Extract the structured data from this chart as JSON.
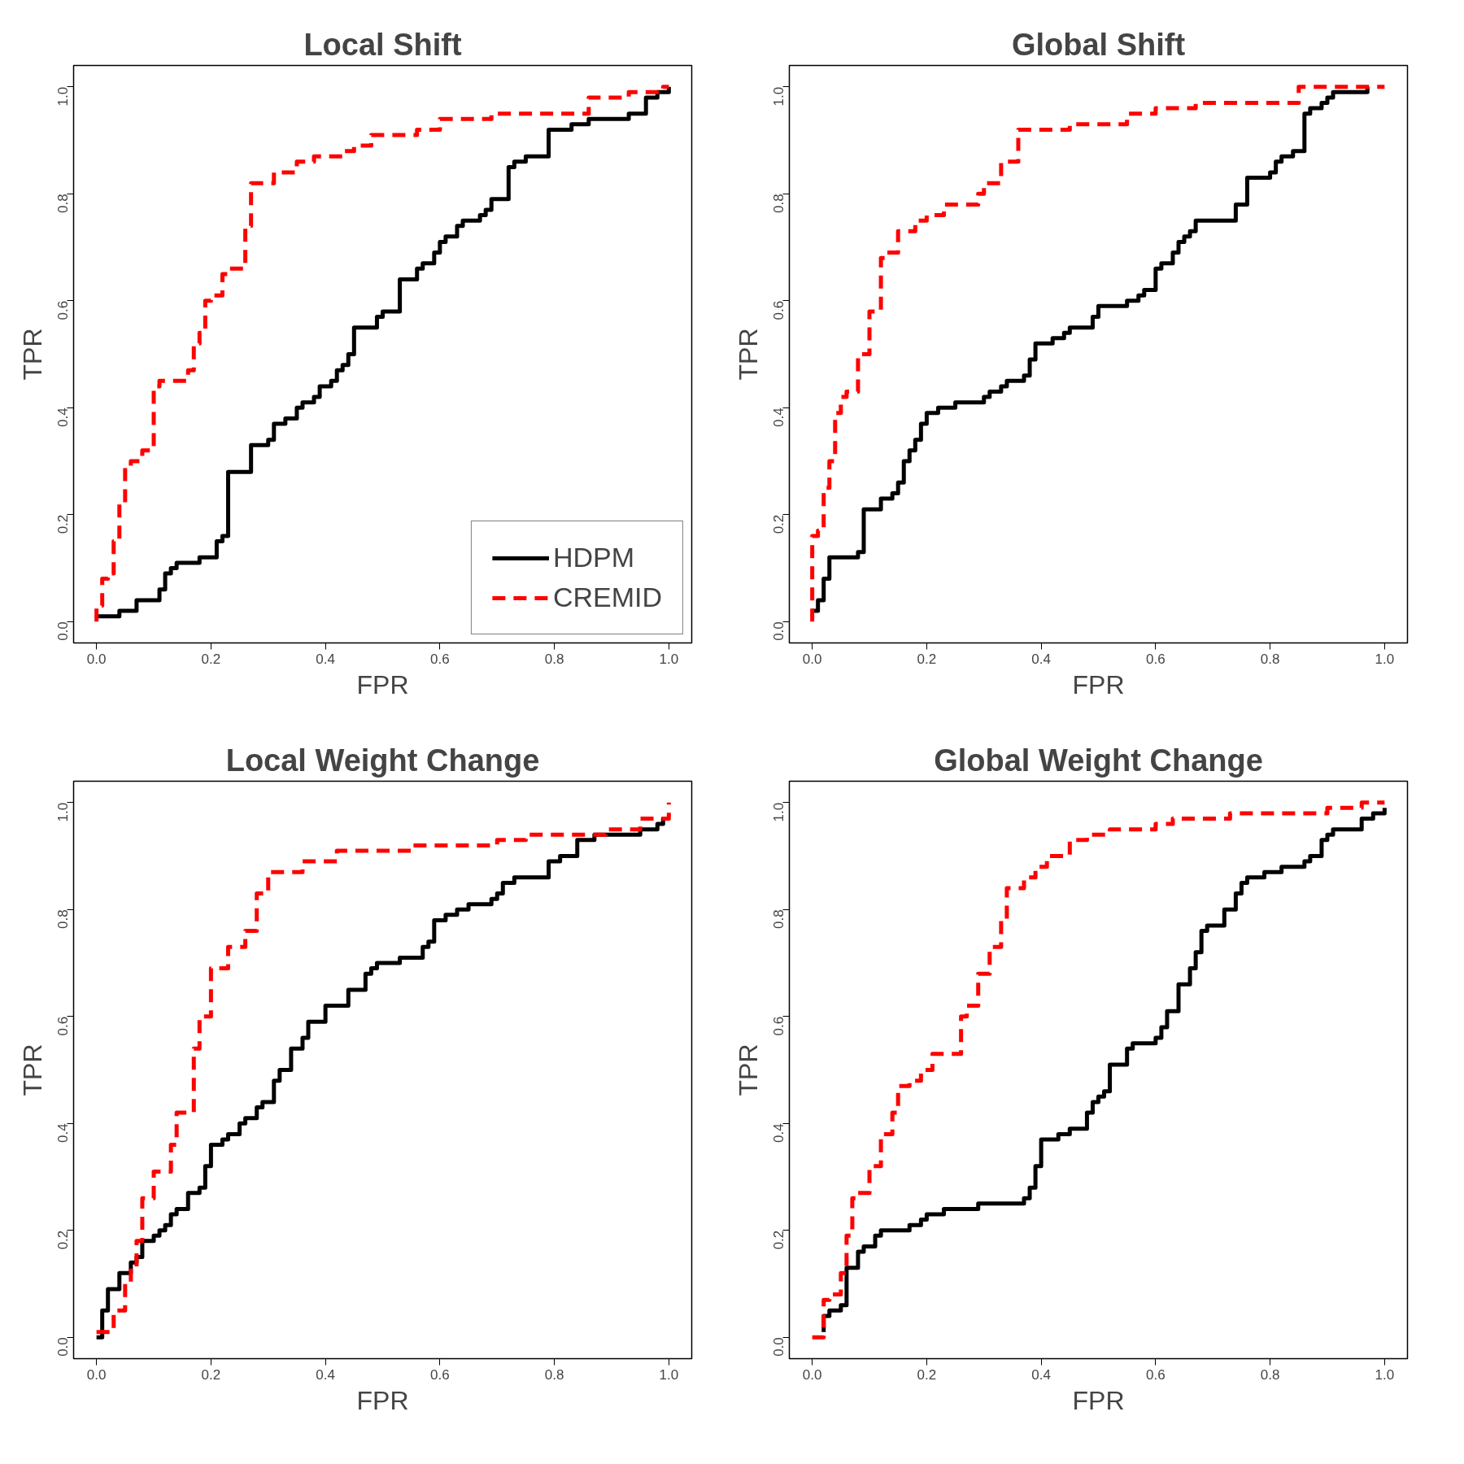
{
  "chart_data": [
    {
      "type": "step",
      "title": "Local Shift",
      "xlabel": "FPR",
      "ylabel": "TPR",
      "xlim": [
        -0.04,
        1.04
      ],
      "ylim": [
        -0.04,
        1.04
      ],
      "xticks": [
        {
          "value": 0,
          "label": "0.0"
        },
        {
          "value": 0.2,
          "label": "0.2"
        },
        {
          "value": 0.4,
          "label": "0.4"
        },
        {
          "value": 0.6,
          "label": "0.6"
        },
        {
          "value": 0.8,
          "label": "0.8"
        },
        {
          "value": 1,
          "label": "1.0"
        }
      ],
      "yticks": [
        {
          "value": 0,
          "label": "0.0"
        },
        {
          "value": 0.2,
          "label": "0.2"
        },
        {
          "value": 0.4,
          "label": "0.4"
        },
        {
          "value": 0.6,
          "label": "0.6"
        },
        {
          "value": 0.8,
          "label": "0.8"
        },
        {
          "value": 1,
          "label": "1.0"
        }
      ],
      "grid": false,
      "legend": "bottom right",
      "series": [
        {
          "name": "HDPM",
          "color": "#000000",
          "line_style": "solid",
          "x": [
            0,
            0.04,
            0.07,
            0.11,
            0.12,
            0.13,
            0.14,
            0.18,
            0.21,
            0.22,
            0.23,
            0.27,
            0.3,
            0.31,
            0.33,
            0.35,
            0.36,
            0.38,
            0.39,
            0.41,
            0.42,
            0.43,
            0.44,
            0.45,
            0.49,
            0.5,
            0.53,
            0.56,
            0.57,
            0.59,
            0.6,
            0.61,
            0.63,
            0.64,
            0.67,
            0.68,
            0.69,
            0.72,
            0.73,
            0.75,
            0.79,
            0.83,
            0.86,
            0.93,
            0.96,
            0.98,
            1.0
          ],
          "values": [
            0.01,
            0.02,
            0.04,
            0.06,
            0.09,
            0.1,
            0.11,
            0.12,
            0.15,
            0.16,
            0.28,
            0.33,
            0.34,
            0.37,
            0.38,
            0.4,
            0.41,
            0.42,
            0.44,
            0.45,
            0.47,
            0.48,
            0.5,
            0.55,
            0.57,
            0.58,
            0.64,
            0.66,
            0.67,
            0.69,
            0.71,
            0.72,
            0.74,
            0.75,
            0.76,
            0.77,
            0.79,
            0.85,
            0.86,
            0.87,
            0.92,
            0.93,
            0.94,
            0.95,
            0.98,
            0.99,
            1.0
          ]
        },
        {
          "name": "CREMID",
          "color": "#ff0000",
          "line_style": "dashed",
          "x": [
            0,
            0,
            0.01,
            0.02,
            0.03,
            0.04,
            0.04,
            0.05,
            0.06,
            0.08,
            0.1,
            0.11,
            0.16,
            0.17,
            0.18,
            0.19,
            0.2,
            0.22,
            0.23,
            0.26,
            0.27,
            0.31,
            0.35,
            0.38,
            0.43,
            0.45,
            0.48,
            0.56,
            0.6,
            0.69,
            0.86,
            0.93,
            0.99,
            1.0
          ],
          "values": [
            0,
            0.03,
            0.08,
            0.09,
            0.15,
            0.16,
            0.22,
            0.29,
            0.3,
            0.32,
            0.44,
            0.45,
            0.47,
            0.52,
            0.54,
            0.6,
            0.61,
            0.65,
            0.66,
            0.74,
            0.82,
            0.84,
            0.86,
            0.87,
            0.88,
            0.89,
            0.91,
            0.92,
            0.94,
            0.95,
            0.98,
            0.99,
            1.0,
            1.0
          ]
        }
      ]
    },
    {
      "type": "step",
      "title": "Global Shift",
      "xlabel": "FPR",
      "ylabel": "TPR",
      "xlim": [
        -0.04,
        1.04
      ],
      "ylim": [
        -0.04,
        1.04
      ],
      "xticks": [
        {
          "value": 0,
          "label": "0.0"
        },
        {
          "value": 0.2,
          "label": "0.2"
        },
        {
          "value": 0.4,
          "label": "0.4"
        },
        {
          "value": 0.6,
          "label": "0.6"
        },
        {
          "value": 0.8,
          "label": "0.8"
        },
        {
          "value": 1,
          "label": "1.0"
        }
      ],
      "yticks": [
        {
          "value": 0,
          "label": "0.0"
        },
        {
          "value": 0.2,
          "label": "0.2"
        },
        {
          "value": 0.4,
          "label": "0.4"
        },
        {
          "value": 0.6,
          "label": "0.6"
        },
        {
          "value": 0.8,
          "label": "0.8"
        },
        {
          "value": 1,
          "label": "1.0"
        }
      ],
      "grid": false,
      "series": [
        {
          "color": "#000000",
          "line_style": "solid",
          "x": [
            0,
            0.01,
            0.02,
            0.03,
            0.08,
            0.09,
            0.12,
            0.14,
            0.15,
            0.16,
            0.17,
            0.18,
            0.19,
            0.2,
            0.22,
            0.25,
            0.3,
            0.31,
            0.33,
            0.34,
            0.37,
            0.38,
            0.39,
            0.42,
            0.44,
            0.45,
            0.49,
            0.5,
            0.55,
            0.57,
            0.58,
            0.6,
            0.61,
            0.63,
            0.64,
            0.65,
            0.66,
            0.67,
            0.74,
            0.76,
            0.8,
            0.81,
            0.82,
            0.84,
            0.86,
            0.87,
            0.89,
            0.9,
            0.91,
            0.97
          ],
          "values": [
            0.02,
            0.04,
            0.08,
            0.12,
            0.13,
            0.21,
            0.23,
            0.24,
            0.26,
            0.3,
            0.32,
            0.34,
            0.37,
            0.39,
            0.4,
            0.41,
            0.42,
            0.43,
            0.44,
            0.45,
            0.46,
            0.49,
            0.52,
            0.53,
            0.54,
            0.55,
            0.57,
            0.59,
            0.6,
            0.61,
            0.62,
            0.66,
            0.67,
            0.69,
            0.71,
            0.72,
            0.73,
            0.75,
            0.78,
            0.83,
            0.84,
            0.86,
            0.87,
            0.88,
            0.95,
            0.96,
            0.97,
            0.98,
            0.99,
            1.0
          ]
        },
        {
          "color": "#ff0000",
          "line_style": "dashed",
          "x": [
            0,
            0,
            0.01,
            0.02,
            0.03,
            0.04,
            0.05,
            0.06,
            0.08,
            0.1,
            0.12,
            0.13,
            0.15,
            0.18,
            0.2,
            0.23,
            0.29,
            0.3,
            0.33,
            0.36,
            0.45,
            0.55,
            0.6,
            0.67,
            0.85,
            1.0
          ],
          "values": [
            0,
            0.16,
            0.17,
            0.25,
            0.3,
            0.39,
            0.42,
            0.43,
            0.5,
            0.58,
            0.68,
            0.69,
            0.73,
            0.75,
            0.76,
            0.78,
            0.8,
            0.82,
            0.86,
            0.92,
            0.93,
            0.95,
            0.96,
            0.97,
            1.0,
            1.0
          ]
        }
      ]
    },
    {
      "type": "step",
      "title": "Local Weight Change",
      "xlabel": "FPR",
      "ylabel": "TPR",
      "xlim": [
        -0.04,
        1.04
      ],
      "ylim": [
        -0.04,
        1.04
      ],
      "xticks": [
        {
          "value": 0,
          "label": "0.0"
        },
        {
          "value": 0.2,
          "label": "0.2"
        },
        {
          "value": 0.4,
          "label": "0.4"
        },
        {
          "value": 0.6,
          "label": "0.6"
        },
        {
          "value": 0.8,
          "label": "0.8"
        },
        {
          "value": 1,
          "label": "1.0"
        }
      ],
      "yticks": [
        {
          "value": 0,
          "label": "0.0"
        },
        {
          "value": 0.2,
          "label": "0.2"
        },
        {
          "value": 0.4,
          "label": "0.4"
        },
        {
          "value": 0.6,
          "label": "0.6"
        },
        {
          "value": 0.8,
          "label": "0.8"
        },
        {
          "value": 1,
          "label": "1.0"
        }
      ],
      "grid": false,
      "series": [
        {
          "color": "#000000",
          "line_style": "solid",
          "x": [
            0,
            0.01,
            0.02,
            0.04,
            0.06,
            0.07,
            0.08,
            0.1,
            0.11,
            0.12,
            0.13,
            0.14,
            0.16,
            0.18,
            0.19,
            0.2,
            0.22,
            0.23,
            0.25,
            0.26,
            0.28,
            0.29,
            0.31,
            0.32,
            0.34,
            0.36,
            0.37,
            0.4,
            0.44,
            0.47,
            0.48,
            0.49,
            0.53,
            0.57,
            0.58,
            0.59,
            0.61,
            0.63,
            0.65,
            0.69,
            0.7,
            0.71,
            0.73,
            0.79,
            0.81,
            0.84,
            0.87,
            0.95,
            0.98,
            0.99,
            1.0
          ],
          "values": [
            0.0,
            0.05,
            0.09,
            0.12,
            0.14,
            0.15,
            0.18,
            0.19,
            0.2,
            0.21,
            0.23,
            0.24,
            0.27,
            0.28,
            0.32,
            0.36,
            0.37,
            0.38,
            0.4,
            0.41,
            0.43,
            0.44,
            0.48,
            0.5,
            0.54,
            0.56,
            0.59,
            0.62,
            0.65,
            0.68,
            0.69,
            0.7,
            0.71,
            0.73,
            0.74,
            0.78,
            0.79,
            0.8,
            0.81,
            0.82,
            0.83,
            0.85,
            0.86,
            0.89,
            0.9,
            0.93,
            0.94,
            0.95,
            0.96,
            0.97,
            0.97
          ]
        },
        {
          "color": "#ff0000",
          "line_style": "dashed",
          "x": [
            0,
            0.03,
            0.05,
            0.06,
            0.07,
            0.08,
            0.1,
            0.13,
            0.14,
            0.17,
            0.18,
            0.2,
            0.23,
            0.26,
            0.28,
            0.3,
            0.36,
            0.42,
            0.55,
            0.7,
            0.75,
            0.89,
            0.95,
            1.0
          ],
          "values": [
            0.01,
            0.05,
            0.1,
            0.13,
            0.18,
            0.26,
            0.31,
            0.36,
            0.42,
            0.54,
            0.6,
            0.69,
            0.73,
            0.76,
            0.83,
            0.87,
            0.89,
            0.91,
            0.92,
            0.93,
            0.94,
            0.95,
            0.97,
            1.0
          ]
        }
      ]
    },
    {
      "type": "step",
      "title": "Global Weight Change",
      "xlabel": "FPR",
      "ylabel": "TPR",
      "xlim": [
        -0.04,
        1.04
      ],
      "ylim": [
        -0.04,
        1.04
      ],
      "xticks": [
        {
          "value": 0,
          "label": "0.0"
        },
        {
          "value": 0.2,
          "label": "0.2"
        },
        {
          "value": 0.4,
          "label": "0.4"
        },
        {
          "value": 0.6,
          "label": "0.6"
        },
        {
          "value": 0.8,
          "label": "0.8"
        },
        {
          "value": 1,
          "label": "1.0"
        }
      ],
      "yticks": [
        {
          "value": 0,
          "label": "0.0"
        },
        {
          "value": 0.2,
          "label": "0.2"
        },
        {
          "value": 0.4,
          "label": "0.4"
        },
        {
          "value": 0.6,
          "label": "0.6"
        },
        {
          "value": 0.8,
          "label": "0.8"
        },
        {
          "value": 1,
          "label": "1.0"
        }
      ],
      "grid": false,
      "series": [
        {
          "color": "#000000",
          "line_style": "solid",
          "x": [
            0.02,
            0.02,
            0.03,
            0.05,
            0.06,
            0.08,
            0.09,
            0.11,
            0.12,
            0.17,
            0.19,
            0.2,
            0.23,
            0.29,
            0.37,
            0.38,
            0.39,
            0.4,
            0.43,
            0.45,
            0.48,
            0.49,
            0.5,
            0.51,
            0.52,
            0.55,
            0.56,
            0.6,
            0.61,
            0.62,
            0.64,
            0.66,
            0.67,
            0.68,
            0.69,
            0.72,
            0.74,
            0.75,
            0.76,
            0.79,
            0.82,
            0.86,
            0.87,
            0.89,
            0.9,
            0.91,
            0.96,
            0.98,
            1.0
          ],
          "values": [
            0.01,
            0.04,
            0.05,
            0.06,
            0.13,
            0.16,
            0.17,
            0.19,
            0.2,
            0.21,
            0.22,
            0.23,
            0.24,
            0.25,
            0.26,
            0.28,
            0.32,
            0.37,
            0.38,
            0.39,
            0.42,
            0.44,
            0.45,
            0.46,
            0.51,
            0.54,
            0.55,
            0.56,
            0.58,
            0.61,
            0.66,
            0.69,
            0.72,
            0.76,
            0.77,
            0.8,
            0.83,
            0.85,
            0.86,
            0.87,
            0.88,
            0.89,
            0.9,
            0.93,
            0.94,
            0.95,
            0.97,
            0.98,
            0.99
          ]
        },
        {
          "color": "#ff0000",
          "line_style": "dashed",
          "x": [
            0,
            0.02,
            0.02,
            0.03,
            0.05,
            0.06,
            0.07,
            0.08,
            0.1,
            0.12,
            0.14,
            0.15,
            0.17,
            0.19,
            0.21,
            0.26,
            0.27,
            0.29,
            0.31,
            0.33,
            0.34,
            0.37,
            0.39,
            0.41,
            0.45,
            0.48,
            0.52,
            0.6,
            0.63,
            0.73,
            0.9,
            0.96,
            1.0
          ],
          "values": [
            0.0,
            0.02,
            0.07,
            0.08,
            0.12,
            0.19,
            0.26,
            0.27,
            0.32,
            0.38,
            0.42,
            0.47,
            0.48,
            0.5,
            0.53,
            0.6,
            0.62,
            0.68,
            0.73,
            0.78,
            0.84,
            0.86,
            0.88,
            0.9,
            0.93,
            0.94,
            0.95,
            0.96,
            0.97,
            0.98,
            0.99,
            1.0,
            1.0
          ]
        }
      ]
    }
  ]
}
